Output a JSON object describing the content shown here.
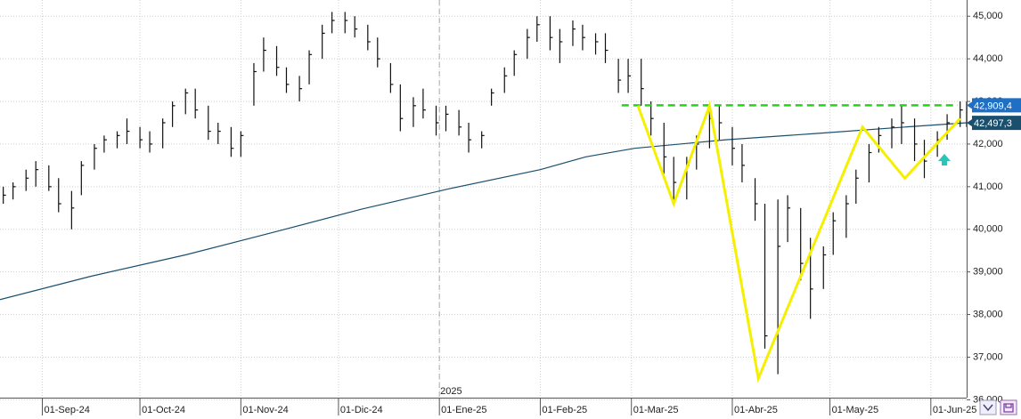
{
  "chart_data": {
    "type": "ohlc",
    "color": "#111111",
    "x": [
      "2024-08-20",
      "2024-08-23",
      "2024-08-27",
      "2024-08-30",
      "2024-09-03",
      "2024-09-06",
      "2024-09-10",
      "2024-09-13",
      "2024-09-17",
      "2024-09-20",
      "2024-09-24",
      "2024-09-27",
      "2024-10-01",
      "2024-10-04",
      "2024-10-08",
      "2024-10-11",
      "2024-10-15",
      "2024-10-18",
      "2024-10-22",
      "2024-10-25",
      "2024-10-29",
      "2024-11-01",
      "2024-11-05",
      "2024-11-08",
      "2024-11-12",
      "2024-11-15",
      "2024-11-19",
      "2024-11-22",
      "2024-11-26",
      "2024-11-29",
      "2024-12-03",
      "2024-12-06",
      "2024-12-10",
      "2024-12-13",
      "2024-12-17",
      "2024-12-20",
      "2024-12-24",
      "2024-12-27",
      "2024-12-31",
      "2025-01-03",
      "2025-01-07",
      "2025-01-10",
      "2025-01-14",
      "2025-01-17",
      "2025-01-21",
      "2025-01-24",
      "2025-01-28",
      "2025-01-31",
      "2025-02-04",
      "2025-02-07",
      "2025-02-11",
      "2025-02-14",
      "2025-02-18",
      "2025-02-21",
      "2025-02-25",
      "2025-02-28",
      "2025-03-04",
      "2025-03-07",
      "2025-03-11",
      "2025-03-14",
      "2025-03-18",
      "2025-03-21",
      "2025-03-25",
      "2025-03-28",
      "2025-04-01",
      "2025-04-04",
      "2025-04-08",
      "2025-04-11",
      "2025-04-15",
      "2025-04-18",
      "2025-04-22",
      "2025-04-25",
      "2025-04-29",
      "2025-05-02",
      "2025-05-06",
      "2025-05-09",
      "2025-05-13",
      "2025-05-16",
      "2025-05-20",
      "2025-05-23",
      "2025-05-27",
      "2025-05-30",
      "2025-06-03",
      "2025-06-06",
      "2025-06-10",
      "2025-06-12"
    ],
    "high": [
      41000,
      41100,
      41400,
      41600,
      41500,
      41200,
      40900,
      41600,
      42000,
      42200,
      42300,
      42600,
      42400,
      42300,
      42600,
      43000,
      43300,
      43300,
      42900,
      42500,
      42400,
      42300,
      43900,
      44500,
      44300,
      43800,
      43600,
      44200,
      44800,
      45100,
      45100,
      45000,
      44800,
      44500,
      43900,
      43400,
      43100,
      43300,
      42900,
      42900,
      42800,
      42500,
      42300,
      43300,
      43800,
      44200,
      44700,
      45000,
      45000,
      44700,
      44900,
      44800,
      44600,
      44600,
      44000,
      44000,
      44000,
      43000,
      42500,
      41700,
      41700,
      42200,
      42800,
      42900,
      42400,
      42000,
      41200,
      40600,
      40700,
      40800,
      40500,
      39800,
      39600,
      40400,
      40800,
      41400,
      42000,
      42400,
      42600,
      42900,
      42600,
      42100,
      42300,
      42700,
      43000,
      43000
    ],
    "low": [
      40600,
      40700,
      40900,
      41000,
      40900,
      40400,
      40000,
      40800,
      41400,
      41800,
      41900,
      42000,
      41900,
      41800,
      41900,
      42400,
      42700,
      42600,
      42100,
      42000,
      41700,
      41700,
      42900,
      43700,
      43600,
      43200,
      43000,
      43400,
      44000,
      44600,
      44600,
      44500,
      44200,
      43800,
      43200,
      42300,
      42400,
      42600,
      42200,
      42300,
      42200,
      41800,
      41900,
      42900,
      43200,
      43600,
      44000,
      44400,
      44200,
      43900,
      44300,
      44200,
      44100,
      43900,
      43200,
      43200,
      42900,
      42200,
      41300,
      40600,
      40700,
      41400,
      41900,
      42100,
      41500,
      41100,
      40200,
      37200,
      36600,
      39700,
      38800,
      37900,
      38600,
      39400,
      39800,
      40600,
      41100,
      41800,
      41900,
      42000,
      41600,
      41200,
      41700,
      42100,
      42400,
      42400
    ],
    "close": [
      40800,
      41000,
      41200,
      41400,
      41000,
      40600,
      40500,
      41500,
      41900,
      42100,
      42200,
      42300,
      42100,
      42000,
      42500,
      42900,
      43200,
      42800,
      42300,
      42300,
      41900,
      42200,
      43700,
      44200,
      43800,
      43400,
      43300,
      44100,
      44600,
      44900,
      44900,
      44700,
      44400,
      44000,
      43400,
      42600,
      42900,
      42800,
      42500,
      42700,
      42400,
      42100,
      42200,
      43200,
      43600,
      44100,
      44500,
      44800,
      44500,
      44400,
      44700,
      44500,
      44400,
      44200,
      43500,
      43600,
      43300,
      42600,
      41700,
      41100,
      41500,
      42000,
      42600,
      42500,
      41900,
      41500,
      40600,
      37500,
      39600,
      40500,
      39200,
      38600,
      39400,
      40200,
      40600,
      41200,
      41800,
      42200,
      42400,
      42500,
      42000,
      41600,
      42100,
      42500,
      42800,
      42500
    ],
    "ma": {
      "color": "#1a4f6e",
      "x": [
        "2024-08-19",
        "2024-09-16",
        "2024-10-15",
        "2024-11-12",
        "2024-12-08",
        "2025-01-04",
        "2025-02-01",
        "2025-02-15",
        "2025-03-02",
        "2025-03-30",
        "2025-04-27",
        "2025-05-24",
        "2025-06-12"
      ],
      "values": [
        38350,
        38900,
        39400,
        39950,
        40470,
        40950,
        41400,
        41700,
        41900,
        42100,
        42250,
        42400,
        42500
      ]
    },
    "pattern": {
      "color": "#f5f000",
      "x": [
        "2025-03-03",
        "2025-03-14",
        "2025-03-25",
        "2025-04-09",
        "2025-05-11",
        "2025-05-24",
        "2025-06-10"
      ],
      "values": [
        42900,
        40600,
        42900,
        36500,
        42400,
        41200,
        42600
      ]
    },
    "hlines": [
      {
        "value": 42909.4,
        "label": "42,909,4",
        "color": "#1f6fc4",
        "dashed": true,
        "from": "2025-02-26"
      },
      {
        "value": 42497.3,
        "label": "42,497,3",
        "color": "#1a4f6e",
        "dashed": false
      }
    ],
    "year_marker": {
      "date": "2025-01-01",
      "label": "2025"
    },
    "xlim": [
      "2024-08-19",
      "2025-06-12"
    ],
    "xticks": [
      {
        "value": "2024-09-01",
        "label": "01-Sep-24"
      },
      {
        "value": "2024-10-01",
        "label": "01-Oct-24"
      },
      {
        "value": "2024-11-01",
        "label": "01-Nov-24"
      },
      {
        "value": "2024-12-01",
        "label": "01-Dic-24"
      },
      {
        "value": "2025-01-01",
        "label": "01-Ene-25"
      },
      {
        "value": "2025-02-01",
        "label": "01-Feb-25"
      },
      {
        "value": "2025-03-01",
        "label": "01-Mar-25"
      },
      {
        "value": "2025-04-01",
        "label": "01-Abr-25"
      },
      {
        "value": "2025-05-01",
        "label": "01-May-25"
      },
      {
        "value": "2025-06-01",
        "label": "01-Jun-25"
      }
    ],
    "ylim": [
      36050,
      45380
    ],
    "yticks": [
      {
        "value": 36000,
        "label": "36,000"
      },
      {
        "value": 37000,
        "label": "37,000"
      },
      {
        "value": 38000,
        "label": "38,000"
      },
      {
        "value": 39000,
        "label": "39,000"
      },
      {
        "value": 40000,
        "label": "40,000"
      },
      {
        "value": 41000,
        "label": "41,000"
      },
      {
        "value": 42000,
        "label": "42,000"
      },
      {
        "value": 43000,
        "label": "43,000"
      },
      {
        "value": 44000,
        "label": "44,000"
      },
      {
        "value": 45000,
        "label": "45,000"
      }
    ],
    "grid": true
  }
}
